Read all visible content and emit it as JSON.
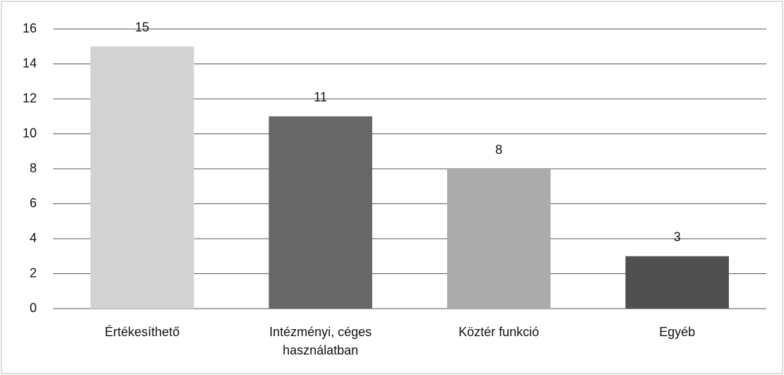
{
  "chart_data": {
    "type": "bar",
    "categories": [
      "Értékesíthető",
      "Intézményi, céges használatban",
      "Köztér funkció",
      "Egyéb"
    ],
    "values": [
      15,
      11,
      8,
      3
    ],
    "colors": [
      "#d2d2d2",
      "#676767",
      "#ababab",
      "#505050"
    ],
    "ylim": [
      0,
      16
    ],
    "yticks": [
      0,
      2,
      4,
      6,
      8,
      10,
      12,
      14,
      16
    ],
    "grid": true
  }
}
